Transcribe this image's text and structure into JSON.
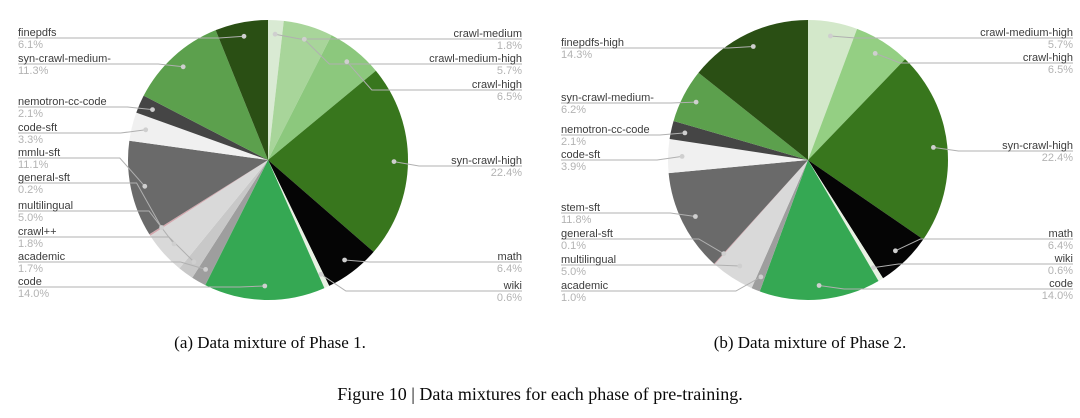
{
  "figure": {
    "captions": {
      "sub_a": "(a) Data mixture of Phase 1.",
      "sub_b": "(b) Data mixture of Phase 2.",
      "main": "Figure 10 | Data mixtures for each phase of pre-training."
    }
  },
  "chart_data": [
    {
      "type": "pie",
      "title": "Data mixture of Phase 1",
      "legend_position": "outside-leader-labels",
      "slices": [
        {
          "label": "crawl-medium",
          "value": 1.8,
          "color": "#d9ead3"
        },
        {
          "label": "crawl-medium-high",
          "value": 5.7,
          "color": "#a8d59a"
        },
        {
          "label": "crawl-high",
          "value": 6.5,
          "color": "#8cc87d"
        },
        {
          "label": "syn-crawl-high",
          "value": 22.4,
          "color": "#38761d"
        },
        {
          "label": "math",
          "value": 6.4,
          "color": "#050505"
        },
        {
          "label": "wiki",
          "value": 0.6,
          "color": "#e8f1e3"
        },
        {
          "label": "code",
          "value": 14.0,
          "color": "#35a853"
        },
        {
          "label": "academic",
          "value": 1.7,
          "color": "#9e9e9e"
        },
        {
          "label": "crawl++",
          "value": 1.8,
          "color": "#c8c8c8"
        },
        {
          "label": "multilingual",
          "value": 5.0,
          "color": "#d9d9d9"
        },
        {
          "label": "general-sft",
          "value": 0.2,
          "color": "#d2a7ad"
        },
        {
          "label": "mmlu-sft",
          "value": 11.1,
          "color": "#6a6a6a"
        },
        {
          "label": "code-sft",
          "value": 3.3,
          "color": "#f0f0f0"
        },
        {
          "label": "nemotron-cc-code",
          "value": 2.1,
          "color": "#454545"
        },
        {
          "label": "syn-crawl-medium-",
          "value": 11.3,
          "color": "#5ca04d"
        },
        {
          "label": "finepdfs",
          "value": 6.1,
          "color": "#2a4f14"
        }
      ]
    },
    {
      "type": "pie",
      "title": "Data mixture of Phase 2",
      "legend_position": "outside-leader-labels",
      "slices": [
        {
          "label": "crawl-medium-high",
          "value": 5.7,
          "color": "#d3e8ca"
        },
        {
          "label": "crawl-high",
          "value": 6.5,
          "color": "#94cf83"
        },
        {
          "label": "syn-crawl-high",
          "value": 22.4,
          "color": "#38761d"
        },
        {
          "label": "math",
          "value": 6.4,
          "color": "#050505"
        },
        {
          "label": "wiki",
          "value": 0.6,
          "color": "#e8f1e3"
        },
        {
          "label": "code",
          "value": 14.0,
          "color": "#35a853"
        },
        {
          "label": "academic",
          "value": 1.0,
          "color": "#9e9e9e"
        },
        {
          "label": "multilingual",
          "value": 5.0,
          "color": "#d9d9d9"
        },
        {
          "label": "general-sft",
          "value": 0.1,
          "color": "#d2a7ad"
        },
        {
          "label": "stem-sft",
          "value": 11.8,
          "color": "#6a6a6a"
        },
        {
          "label": "code-sft",
          "value": 3.9,
          "color": "#f0f0f0"
        },
        {
          "label": "nemotron-cc-code",
          "value": 2.1,
          "color": "#454545"
        },
        {
          "label": "syn-crawl-medium-",
          "value": 6.2,
          "color": "#5ca04d"
        },
        {
          "label": "finepdfs-high",
          "value": 14.3,
          "color": "#2a4f14"
        }
      ]
    }
  ]
}
